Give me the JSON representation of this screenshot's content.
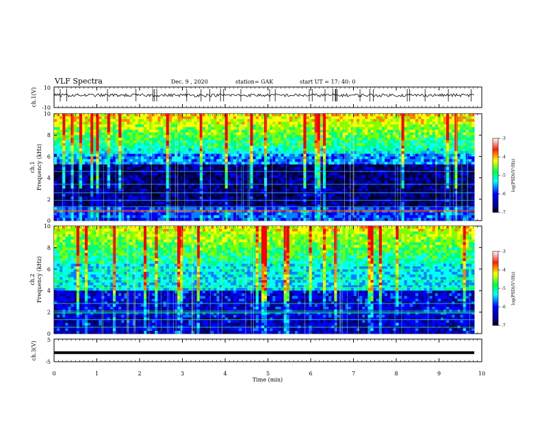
{
  "header": {
    "title": "VLF Spectra",
    "date": "Dec. 9 , 2020",
    "station": "station= GAK",
    "start_ut": "start UT =  17: 40: 0"
  },
  "chart_data": [
    {
      "id": "ch1-waveform",
      "type": "line",
      "ylabel": "ch.1(V)",
      "ylim": [
        -10,
        10
      ],
      "y_ticks": [
        "10",
        "-10"
      ],
      "x_range_min": [
        0,
        10
      ],
      "trace_level_v": 2,
      "trace_color": "#000000"
    },
    {
      "id": "ch1-spectrogram",
      "type": "heatmap",
      "ylabel": "ch.1\nFrequency  (kHz)",
      "ylabel_lines": [
        "ch.1",
        "Frequency  (kHz)"
      ],
      "ylim": [
        0,
        10
      ],
      "y_ticks": [
        "0",
        "2",
        "4",
        "6",
        "8",
        "10"
      ],
      "colorbar": {
        "label": "log(PSD)(V²/Hz)",
        "range": [
          -7,
          -3
        ],
        "ticks": [
          "-3",
          "-4",
          "-5",
          "-6",
          "-7"
        ]
      }
    },
    {
      "id": "ch2-spectrogram",
      "type": "heatmap",
      "ylabel": "ch.2\nFrequency  (kHz)",
      "ylabel_lines": [
        "ch.2",
        "Frequency  (kHz)"
      ],
      "ylim": [
        0,
        10
      ],
      "y_ticks": [
        "0",
        "2",
        "4",
        "6",
        "8",
        "10"
      ],
      "colorbar": {
        "label": "log(PSD)(V²/Hz)",
        "range": [
          -7,
          -3
        ],
        "ticks": [
          "-3",
          "-4",
          "-5",
          "-6",
          "-7"
        ]
      }
    },
    {
      "id": "ch3-waveform",
      "type": "line",
      "ylabel": "ch.3(V)",
      "ylim": [
        -5,
        5
      ],
      "y_ticks": [
        "5",
        "-5"
      ],
      "trace_level_v": -1,
      "trace_color": "#000000",
      "xlabel": "Time  (min)",
      "x_ticks": [
        "0",
        "1",
        "2",
        "3",
        "4",
        "5",
        "6",
        "7",
        "8",
        "9",
        "10"
      ],
      "xlim": [
        0,
        10
      ]
    }
  ],
  "colormap": [
    "#000033",
    "#00008b",
    "#0000ff",
    "#0080ff",
    "#00ffff",
    "#00ff80",
    "#80ff00",
    "#ffff00",
    "#ff8000",
    "#ff0000"
  ]
}
